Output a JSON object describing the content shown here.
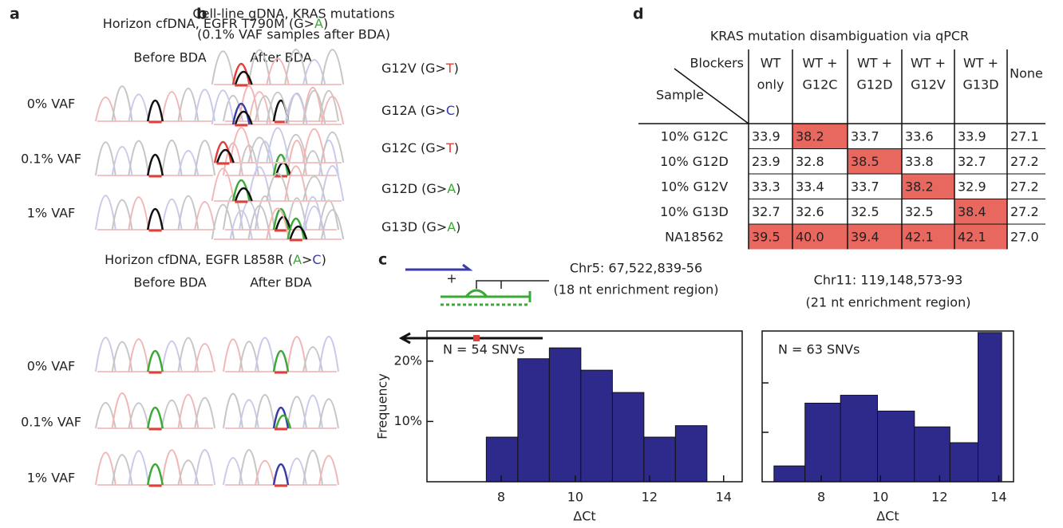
{
  "panels": {
    "a": {
      "label": "a",
      "sections": [
        {
          "title": [
            {
              "text": "Horizon cfDNA, EGFR T790M (G>"
            },
            {
              "text": "A",
              "color": "#3aa935"
            },
            {
              "text": ")"
            }
          ],
          "columns": [
            "Before BDA",
            "After BDA"
          ],
          "rows": [
            "0% VAF",
            "0.1% VAF",
            "1% VAF"
          ]
        },
        {
          "title": [
            {
              "text": "Horizon cfDNA, EGFR L858R ("
            },
            {
              "text": "A",
              "color": "#3aa935"
            },
            {
              "text": ">"
            },
            {
              "text": "C",
              "color": "#3b3ba8"
            },
            {
              "text": ")"
            }
          ],
          "columns": [
            "Before BDA",
            "After BDA"
          ],
          "rows": [
            "0% VAF",
            "0.1% VAF",
            "1% VAF"
          ]
        }
      ]
    },
    "b": {
      "label": "b",
      "title": [
        "Cell-line gDNA, KRAS mutations",
        "(0.1% VAF samples after BDA)"
      ],
      "samples": [
        [
          {
            "text": "G12V (G>"
          },
          {
            "text": "T",
            "color": "#e0403a"
          },
          {
            "text": ")"
          }
        ],
        [
          {
            "text": "G12A (G>"
          },
          {
            "text": "C",
            "color": "#3b3ba8"
          },
          {
            "text": ")"
          }
        ],
        [
          {
            "text": "G12C (G>"
          },
          {
            "text": "T",
            "color": "#e0403a"
          },
          {
            "text": ")"
          }
        ],
        [
          {
            "text": "G12D (G>"
          },
          {
            "text": "A",
            "color": "#3aa935"
          },
          {
            "text": ")"
          }
        ],
        [
          {
            "text": "G13D (G>"
          },
          {
            "text": "A",
            "color": "#3aa935"
          },
          {
            "text": ")"
          }
        ]
      ]
    },
    "c": {
      "label": "c",
      "plus": "+",
      "regions": [
        [
          "Chr5: 67,522,839-56",
          "(18 nt enrichment region)"
        ],
        [
          "Chr11: 119,148,573-93",
          "(21 nt enrichment region)"
        ]
      ]
    },
    "d": {
      "label": "d",
      "title": "KRAS mutation disambiguation via qPCR",
      "corner_top": "Blockers",
      "corner_bottom": "Sample",
      "highlight_color": "#e8675f",
      "columns": [
        [
          "WT",
          "only"
        ],
        [
          "WT +",
          "G12C"
        ],
        [
          "WT +",
          "G12D"
        ],
        [
          "WT +",
          "G12V"
        ],
        [
          "WT +",
          "G13D"
        ],
        [
          "None"
        ]
      ],
      "rows": [
        {
          "sample": "10% G12C",
          "cells": [
            {
              "text": "33.9"
            },
            {
              "text": "38.2",
              "highlight": true
            },
            {
              "text": "33.7"
            },
            {
              "text": "33.6"
            },
            {
              "text": "33.9"
            },
            {
              "text": "27.1"
            }
          ]
        },
        {
          "sample": "10% G12D",
          "cells": [
            {
              "text": "23.9"
            },
            {
              "text": "32.8"
            },
            {
              "text": "38.5",
              "highlight": true
            },
            {
              "text": "33.8"
            },
            {
              "text": "32.7"
            },
            {
              "text": "27.2"
            }
          ]
        },
        {
          "sample": "10% G12V",
          "cells": [
            {
              "text": "33.3"
            },
            {
              "text": "33.4"
            },
            {
              "text": "33.7"
            },
            {
              "text": "38.2",
              "highlight": true
            },
            {
              "text": "32.9"
            },
            {
              "text": "27.2"
            }
          ]
        },
        {
          "sample": "10% G13D",
          "cells": [
            {
              "text": "32.7"
            },
            {
              "text": "32.6"
            },
            {
              "text": "32.5"
            },
            {
              "text": "32.5"
            },
            {
              "text": "38.4",
              "highlight": true
            },
            {
              "text": "27.2"
            }
          ]
        },
        {
          "sample": "NA18562",
          "cells": [
            {
              "text": "39.5",
              "highlight": true
            },
            {
              "text": "40.0",
              "highlight": true
            },
            {
              "text": "39.4",
              "highlight": true
            },
            {
              "text": "42.1",
              "highlight": true
            },
            {
              "text": "42.1",
              "highlight": true
            },
            {
              "text": "27.0"
            }
          ]
        }
      ]
    }
  },
  "chart_data": [
    {
      "type": "histogram",
      "annotation": "N = 54 SNVs",
      "xlabel": "ΔCt",
      "ylabel": "Frequency",
      "color": "#2e2a8c",
      "bins": [
        7.6,
        8.45,
        9.3,
        10.15,
        11.0,
        11.85,
        12.7,
        13.55
      ],
      "values": [
        7.4,
        20.4,
        22.2,
        18.5,
        14.8,
        7.4,
        9.3
      ],
      "xlim": [
        6,
        14.5
      ],
      "xticks": [
        8,
        10,
        12,
        14
      ],
      "ylim": [
        0,
        25
      ],
      "yticks": [
        {
          "value": 10,
          "label": "10%"
        },
        {
          "value": 20,
          "label": "20%"
        }
      ]
    },
    {
      "type": "histogram",
      "annotation": "N = 63 SNVs",
      "xlabel": "ΔCt",
      "color": "#2e2a8c",
      "bins": [
        6.4,
        7.45,
        8.65,
        9.9,
        11.15,
        12.35,
        13.3,
        14.1
      ],
      "values": [
        3.2,
        15.9,
        17.5,
        14.3,
        11.1,
        7.9,
        30.2
      ],
      "xlim": [
        6,
        14.5
      ],
      "xticks": [
        8,
        10,
        12,
        14
      ],
      "ylim": [
        0,
        30.5
      ],
      "yticks": [
        10,
        20
      ],
      "ytick_labels": false
    }
  ]
}
